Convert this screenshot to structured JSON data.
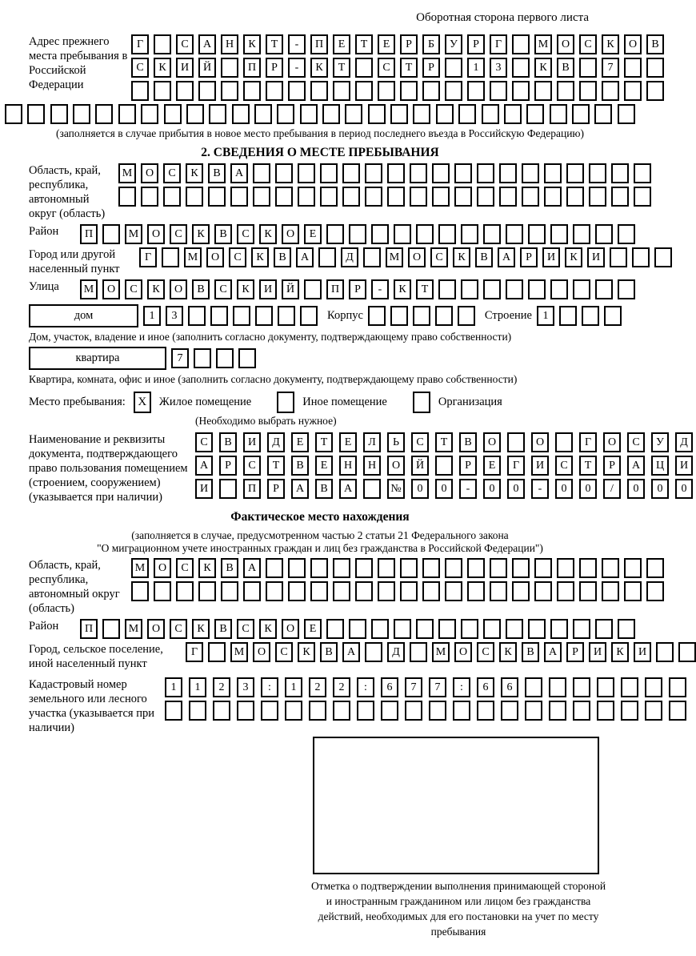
{
  "colors": {
    "ink": "#000000",
    "paper": "#ffffff"
  },
  "page_header": "Оборотная сторона первого листа",
  "prev_address": {
    "label": "Адрес прежнего места пребывания в Российской Федерации",
    "rows": [
      {
        "n": 24,
        "text": "Г САНКТ-ПЕТЕРБУРГ МОСКОВ"
      },
      {
        "n": 24,
        "text": "СКИЙ ПР-КТ СТР 13 КВ 7"
      },
      {
        "n": 24,
        "text": ""
      },
      {
        "n": 28,
        "text": ""
      }
    ],
    "note": "(заполняется в случае прибытия в новое место пребывания в период последнего въезда в Российскую Федерацию)"
  },
  "section2": {
    "title": "2. СВЕДЕНИЯ О МЕСТЕ ПРЕБЫВАНИЯ",
    "region": {
      "label": "Область, край, республика, автономный округ (область)",
      "rows": [
        {
          "n": 24,
          "text": "МОСКВА"
        },
        {
          "n": 24,
          "text": ""
        }
      ]
    },
    "district": {
      "label": "Район",
      "row": {
        "n": 25,
        "text": "П МОСКВСКОЕ"
      }
    },
    "city": {
      "label": "Город или другой населенный пункт",
      "row": {
        "n": 24,
        "text": "Г МОСКВА Д МОСКВАРИКИ"
      }
    },
    "street": {
      "label": "Улица",
      "row": {
        "n": 25,
        "text": "МОСКОВСКИЙ ПР-КТ"
      }
    },
    "house": {
      "label": "дом",
      "cells": {
        "n": 8,
        "text": "13"
      },
      "korpus_label": "Корпус",
      "korpus_cells": {
        "n": 5,
        "text": ""
      },
      "stroenie_label": "Строение",
      "stroenie_cells": {
        "n": 4,
        "text": "1"
      },
      "caption": "Дом, участок, владение и иное (заполнить согласно документу, подтверждающему право собственности)"
    },
    "apartment": {
      "label": "квартира",
      "cells": {
        "n": 4,
        "text": "7"
      },
      "caption": "Квартира, комната, офис и иное (заполнить согласно документу, подтверждающему право собственности)"
    },
    "stay_type": {
      "label": "Место пребывания:",
      "options": [
        {
          "label": "Жилое помещение",
          "checked": "X"
        },
        {
          "label": "Иное помещение",
          "checked": ""
        },
        {
          "label": "Организация",
          "checked": ""
        }
      ],
      "note": "(Необходимо выбрать нужное)"
    },
    "document": {
      "label": "Наименование и реквизиты документа, подтверждающего право пользования помещением (строением, сооружением) (указывается при наличии)",
      "rows": [
        {
          "n": 21,
          "text": "СВИДЕТЕЛЬСТВО О ГОСУД"
        },
        {
          "n": 21,
          "text": "АРСТВЕННОЙ РЕГИСТРАЦИ"
        },
        {
          "n": 21,
          "text": "И ПРАВА №00-00-00/000"
        }
      ]
    }
  },
  "actual_location": {
    "title": "Фактическое место нахождения",
    "note_line1": "(заполняется в случае, предусмотренном частью 2 статьи 21 Федерального закона",
    "note_line2": "\"О миграционном учете иностранных граждан и лиц без гражданства в Российской Федерации\")",
    "region": {
      "label": "Область, край, республика, автономный округ (область)",
      "rows": [
        {
          "n": 24,
          "text": "МОСКВА"
        },
        {
          "n": 24,
          "text": ""
        }
      ]
    },
    "district": {
      "label": "Район",
      "row": {
        "n": 25,
        "text": "П МОСКВСКОЕ"
      }
    },
    "city": {
      "label": "Город, сельское поселение, иной населенный пункт",
      "row": {
        "n": 23,
        "text": "Г МОСКВА Д МОСКВАРИКИ"
      }
    },
    "cadastral": {
      "label": "Кадастровый номер земельного или лесного участка (указывается при наличии)",
      "rows": [
        {
          "n": 22,
          "text": "1123:122:677:66"
        },
        {
          "n": 22,
          "text": ""
        }
      ]
    }
  },
  "stamp": {
    "caption": "Отметка о подтверждении выполнения принимающей стороной и иностранным гражданином или лицом без гражданства действий, необходимых для его постановки на учет по месту пребывания"
  }
}
